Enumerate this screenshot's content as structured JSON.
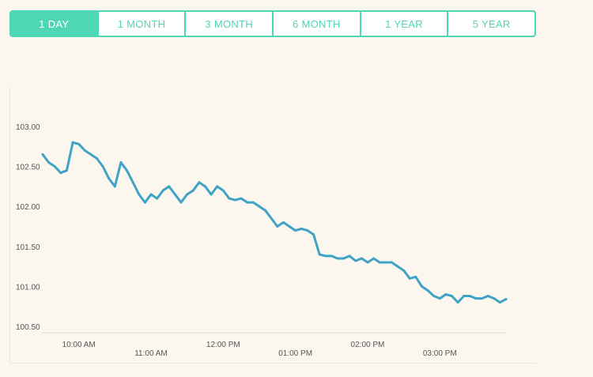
{
  "tabs": [
    {
      "label": "1 DAY",
      "active": true
    },
    {
      "label": "1 MONTH",
      "active": false
    },
    {
      "label": "3 MONTH",
      "active": false
    },
    {
      "label": "6 MONTH",
      "active": false
    },
    {
      "label": "1 YEAR",
      "active": false
    },
    {
      "label": "5 YEAR",
      "active": false
    }
  ],
  "colors": {
    "accent": "#4fd6b5",
    "line": "#3fa3c5",
    "background": "#fbf7ee"
  },
  "chart_data": {
    "type": "line",
    "title": "",
    "xlabel": "",
    "ylabel": "",
    "ylim": [
      100.5,
      103.0
    ],
    "y_ticks": [
      "103.00",
      "102.50",
      "102.00",
      "101.50",
      "101.00",
      "100.50"
    ],
    "x_ticks": [
      "10:00 AM",
      "11:00 AM",
      "12:00 PM",
      "01:00 PM",
      "02:00 PM",
      "03:00 PM"
    ],
    "grid": false,
    "series": [
      {
        "x": [
          "09:30",
          "09:35",
          "09:40",
          "09:45",
          "09:50",
          "09:55",
          "10:00",
          "10:05",
          "10:10",
          "10:15",
          "10:20",
          "10:25",
          "10:30",
          "10:35",
          "10:40",
          "10:45",
          "10:50",
          "10:55",
          "11:00",
          "11:05",
          "11:10",
          "11:15",
          "11:20",
          "11:25",
          "11:30",
          "11:35",
          "11:40",
          "11:45",
          "11:50",
          "11:55",
          "12:00",
          "12:05",
          "12:10",
          "12:15",
          "12:20",
          "12:25",
          "12:30",
          "12:35",
          "12:40",
          "12:45",
          "12:50",
          "12:55",
          "13:00",
          "13:05",
          "13:10",
          "13:15",
          "13:20",
          "13:25",
          "13:30",
          "13:35",
          "13:40",
          "13:45",
          "13:50",
          "13:55",
          "14:00",
          "14:05",
          "14:10",
          "14:15",
          "14:20",
          "14:25",
          "14:30",
          "14:35",
          "14:40",
          "14:45",
          "14:50",
          "14:55",
          "15:00",
          "15:05",
          "15:10",
          "15:15",
          "15:20",
          "15:25",
          "15:30",
          "15:35",
          "15:40",
          "15:45",
          "15:50",
          "15:55"
        ],
        "values": [
          102.65,
          102.55,
          102.5,
          102.42,
          102.45,
          102.8,
          102.78,
          102.7,
          102.65,
          102.6,
          102.5,
          102.35,
          102.25,
          102.55,
          102.45,
          102.3,
          102.15,
          102.05,
          102.15,
          102.1,
          102.2,
          102.25,
          102.15,
          102.05,
          102.15,
          102.2,
          102.3,
          102.25,
          102.15,
          102.25,
          102.2,
          102.1,
          102.08,
          102.1,
          102.05,
          102.05,
          102.0,
          101.95,
          101.85,
          101.75,
          101.8,
          101.75,
          101.7,
          101.72,
          101.7,
          101.65,
          101.4,
          101.38,
          101.38,
          101.35,
          101.35,
          101.38,
          101.32,
          101.35,
          101.3,
          101.35,
          101.3,
          101.3,
          101.3,
          101.25,
          101.2,
          101.1,
          101.12,
          101.0,
          100.95,
          100.88,
          100.85,
          100.9,
          100.88,
          100.8,
          100.88,
          100.88,
          100.85,
          100.85,
          100.88,
          100.85,
          100.8,
          100.84
        ]
      }
    ]
  }
}
